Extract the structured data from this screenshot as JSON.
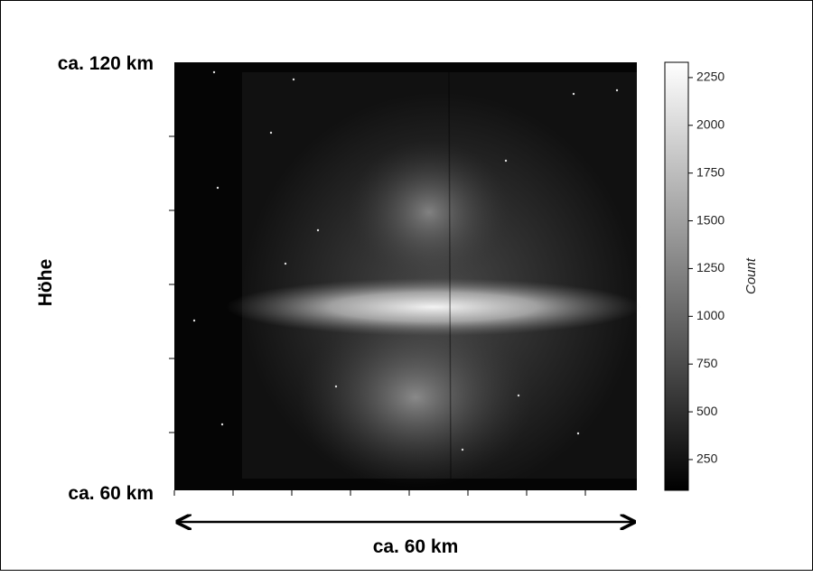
{
  "chart_data": {
    "type": "heatmap",
    "y_top_label": "ca. 120 km",
    "y_bottom_label": "ca. 60 km",
    "y_axis_label": "Höhe",
    "x_axis_label": "ca. 60 km",
    "colorbar": {
      "label": "Count",
      "clim": [
        89,
        2330
      ],
      "ticks": [
        250,
        500,
        750,
        1000,
        1250,
        1500,
        1750,
        2000,
        2250
      ]
    }
  }
}
